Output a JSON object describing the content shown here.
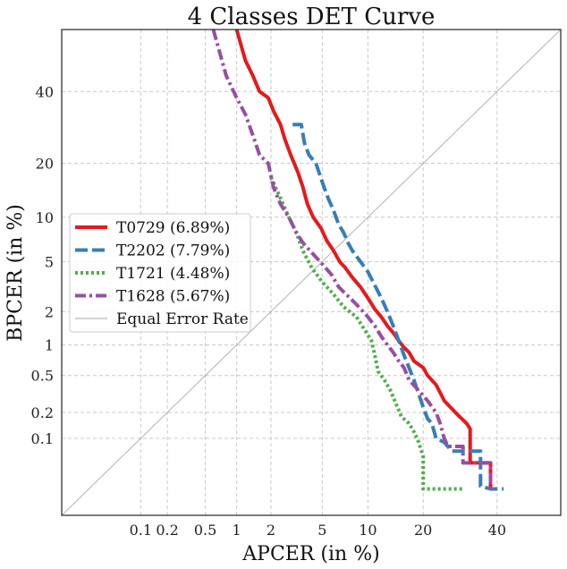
{
  "chart_data": {
    "type": "line",
    "title": "4 Classes DET Curve",
    "xlabel": "APCER (in %)",
    "ylabel": "BPCER (in %)",
    "x_scale": "probit",
    "y_scale": "probit",
    "xlim": [
      0.01,
      60
    ],
    "ylim": [
      0.01,
      60
    ],
    "x_ticks": [
      0.1,
      0.2,
      0.5,
      1,
      2,
      5,
      10,
      20,
      40
    ],
    "x_tick_labels": [
      "0.1",
      "0.2",
      "0.5",
      "1",
      "2",
      "5",
      "10",
      "20",
      "40"
    ],
    "y_ticks": [
      0.1,
      0.2,
      0.5,
      1,
      2,
      5,
      10,
      20,
      40
    ],
    "y_tick_labels": [
      "0.1",
      "0.2",
      "0.5",
      "1",
      "2",
      "5",
      "10",
      "20",
      "40"
    ],
    "grid": true,
    "legend_position": "center-left",
    "series": [
      {
        "name": "T0729 (6.89%)",
        "color": "#e41a1c",
        "style": "solid",
        "points": [
          [
            1.0,
            60
          ],
          [
            1.2,
            50
          ],
          [
            1.4,
            45
          ],
          [
            1.6,
            40
          ],
          [
            1.9,
            38
          ],
          [
            2.1,
            34
          ],
          [
            2.4,
            30
          ],
          [
            2.6,
            26
          ],
          [
            2.9,
            22
          ],
          [
            3.3,
            18
          ],
          [
            3.6,
            15
          ],
          [
            3.9,
            12
          ],
          [
            4.3,
            10
          ],
          [
            4.9,
            8.5
          ],
          [
            5.4,
            7
          ],
          [
            6.0,
            6
          ],
          [
            6.6,
            5
          ],
          [
            7.2,
            4.5
          ],
          [
            8.0,
            3.8
          ],
          [
            9.0,
            3.2
          ],
          [
            10.0,
            2.6
          ],
          [
            11.0,
            2.1
          ],
          [
            12.0,
            1.8
          ],
          [
            13.0,
            1.5
          ],
          [
            14.0,
            1.3
          ],
          [
            15.0,
            1.1
          ],
          [
            16.0,
            0.95
          ],
          [
            17.0,
            0.85
          ],
          [
            18.0,
            0.7
          ],
          [
            20.0,
            0.6
          ],
          [
            21.0,
            0.5
          ],
          [
            23.0,
            0.4
          ],
          [
            24.0,
            0.33
          ],
          [
            25.0,
            0.27
          ],
          [
            27.0,
            0.22
          ],
          [
            29.0,
            0.18
          ],
          [
            31.0,
            0.15
          ],
          [
            32.0,
            0.13
          ],
          [
            32.0,
            0.05
          ],
          [
            38.0,
            0.05
          ],
          [
            38.0,
            0.023
          ]
        ]
      },
      {
        "name": "T2202 (7.79%)",
        "color": "#377eb8",
        "style": "dashed",
        "points": [
          [
            3.0,
            30
          ],
          [
            3.5,
            30
          ],
          [
            3.7,
            25
          ],
          [
            4.0,
            22
          ],
          [
            4.5,
            20
          ],
          [
            5.0,
            16
          ],
          [
            5.5,
            13
          ],
          [
            6.0,
            11
          ],
          [
            6.5,
            9
          ],
          [
            7.0,
            8
          ],
          [
            7.5,
            6.8
          ],
          [
            8.0,
            6
          ],
          [
            9.0,
            5
          ],
          [
            10.0,
            4.2
          ],
          [
            11.0,
            3.3
          ],
          [
            12.0,
            2.6
          ],
          [
            13.0,
            2.0
          ],
          [
            14.0,
            1.5
          ],
          [
            15.0,
            1.1
          ],
          [
            16.0,
            0.8
          ],
          [
            17.0,
            0.6
          ],
          [
            18.0,
            0.45
          ],
          [
            19.0,
            0.32
          ],
          [
            20.0,
            0.23
          ],
          [
            21.0,
            0.17
          ],
          [
            22.0,
            0.15
          ],
          [
            23.0,
            0.1
          ],
          [
            25.0,
            0.09
          ],
          [
            27.0,
            0.07
          ],
          [
            35.0,
            0.07
          ],
          [
            35.0,
            0.025
          ],
          [
            38.0,
            0.023
          ],
          [
            42.0,
            0.023
          ]
        ]
      },
      {
        "name": "T1721 (4.48%)",
        "color": "#4daf4a",
        "style": "dotted",
        "points": [
          [
            2.0,
            17
          ],
          [
            2.4,
            13
          ],
          [
            2.8,
            10
          ],
          [
            3.2,
            8
          ],
          [
            3.6,
            6
          ],
          [
            4.2,
            4.5
          ],
          [
            5.0,
            3.5
          ],
          [
            6.0,
            2.8
          ],
          [
            7.0,
            2.2
          ],
          [
            8.5,
            1.8
          ],
          [
            9.5,
            1.4
          ],
          [
            10.5,
            1.1
          ],
          [
            11.0,
            0.8
          ],
          [
            11.5,
            0.55
          ],
          [
            12.5,
            0.45
          ],
          [
            13.5,
            0.35
          ],
          [
            14.5,
            0.25
          ],
          [
            15.5,
            0.18
          ],
          [
            17.0,
            0.15
          ],
          [
            18.0,
            0.12
          ],
          [
            19.0,
            0.09
          ],
          [
            20.0,
            0.06
          ],
          [
            20.0,
            0.023
          ],
          [
            23.0,
            0.023
          ],
          [
            30.0,
            0.023
          ]
        ]
      },
      {
        "name": "T1628 (5.67%)",
        "color": "#984ea3",
        "style": "dashdot",
        "points": [
          [
            0.6,
            60
          ],
          [
            0.8,
            45
          ],
          [
            1.0,
            38
          ],
          [
            1.2,
            33
          ],
          [
            1.4,
            27
          ],
          [
            1.6,
            22
          ],
          [
            1.9,
            20
          ],
          [
            2.1,
            15
          ],
          [
            2.4,
            12
          ],
          [
            2.8,
            10
          ],
          [
            3.2,
            8
          ],
          [
            3.6,
            6.8
          ],
          [
            4.2,
            5.8
          ],
          [
            5.0,
            4.8
          ],
          [
            5.8,
            4
          ],
          [
            6.5,
            3.2
          ],
          [
            7.5,
            2.7
          ],
          [
            8.5,
            2.3
          ],
          [
            10.0,
            1.8
          ],
          [
            11.0,
            1.5
          ],
          [
            12.0,
            1.2
          ],
          [
            13.0,
            1.0
          ],
          [
            14.0,
            0.85
          ],
          [
            15.0,
            0.7
          ],
          [
            16.0,
            0.6
          ],
          [
            17.0,
            0.45
          ],
          [
            19.0,
            0.35
          ],
          [
            21.0,
            0.27
          ],
          [
            23.0,
            0.2
          ],
          [
            24.0,
            0.15
          ],
          [
            25.0,
            0.1
          ],
          [
            26.0,
            0.08
          ],
          [
            30.0,
            0.08
          ],
          [
            30.0,
            0.05
          ],
          [
            38.0,
            0.05
          ],
          [
            38.0,
            0.023
          ]
        ]
      },
      {
        "name": "Equal Error Rate",
        "color": "#aaaaaa",
        "style": "thin",
        "points": [
          [
            0.01,
            0.01
          ],
          [
            60,
            60
          ]
        ]
      }
    ]
  }
}
